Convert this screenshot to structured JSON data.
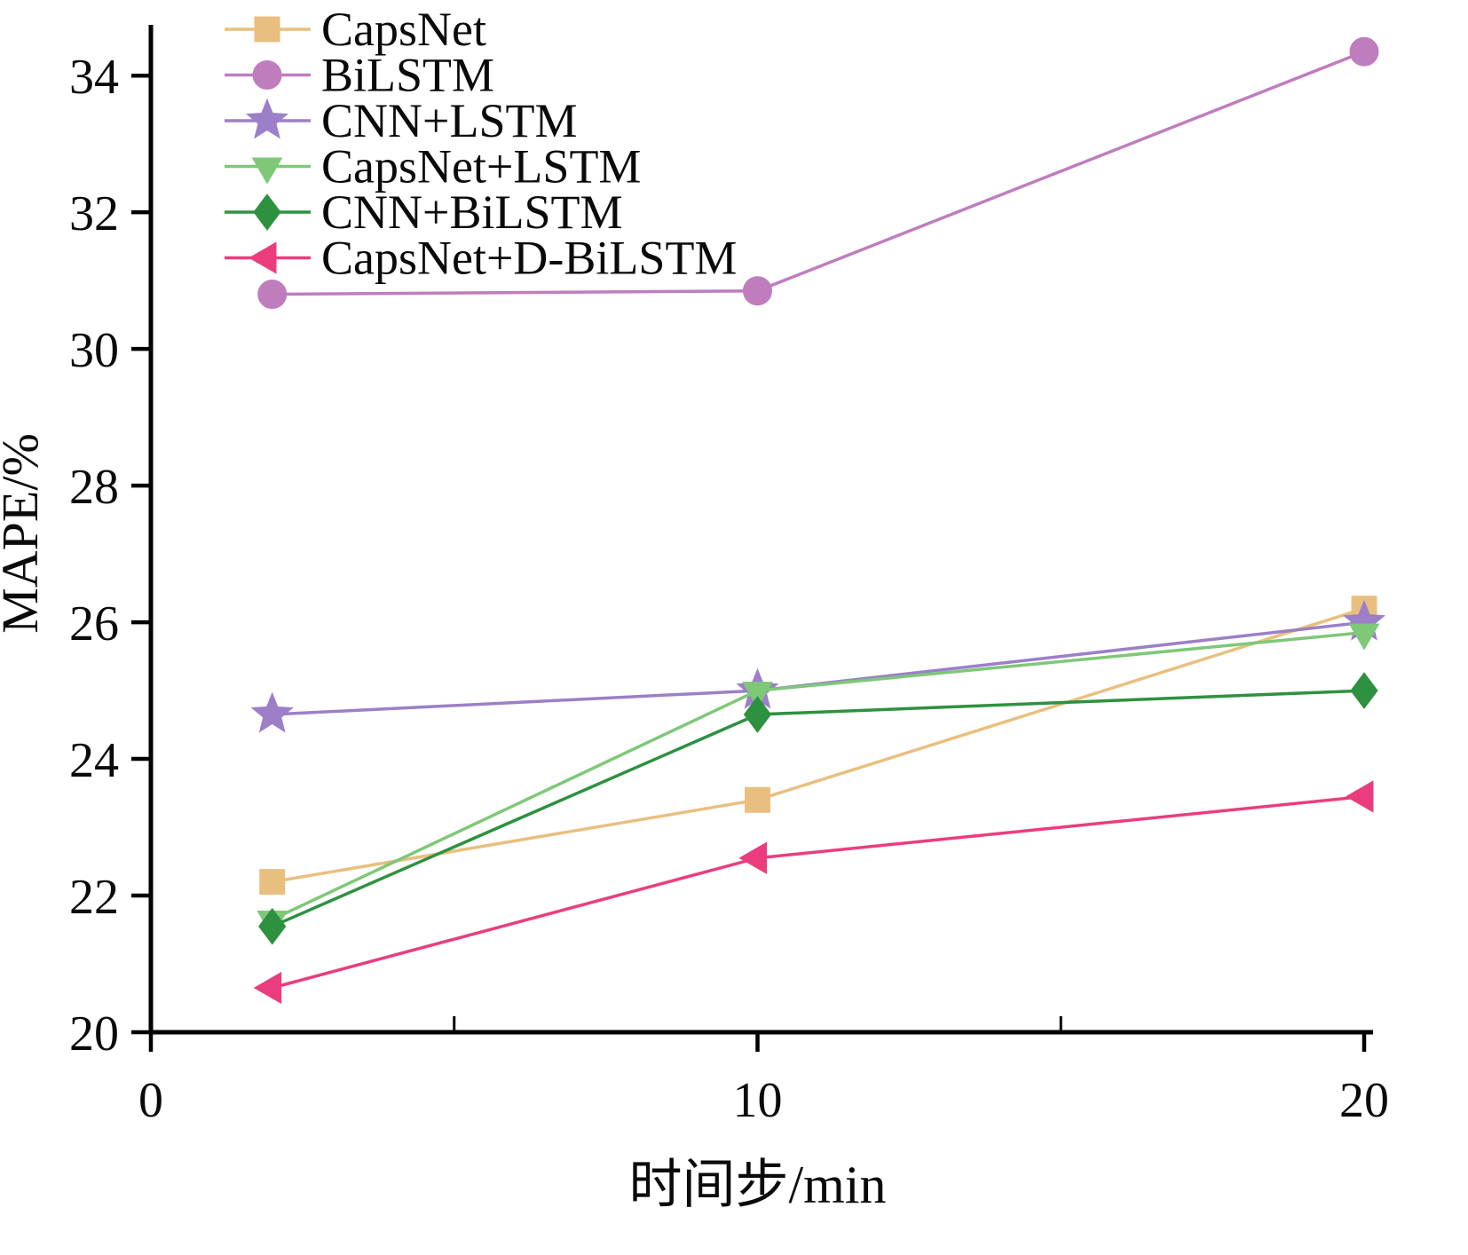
{
  "chart_data": {
    "type": "line",
    "title": "",
    "xlabel": "时间步/min",
    "ylabel": "MAPE/%",
    "x": [
      2,
      10,
      20
    ],
    "x_ticks": [
      0,
      10,
      20
    ],
    "x_minor_ticks": [
      5,
      15
    ],
    "y_ticks": [
      20,
      22,
      24,
      26,
      28,
      30,
      32,
      34
    ],
    "xlim": [
      0,
      20
    ],
    "ylim": [
      20,
      34.6
    ],
    "grid": false,
    "legend_position": "upper-left",
    "axis_color": "#000000",
    "series": [
      {
        "name": "CapsNet",
        "marker": "square",
        "color": "#e9bf7f",
        "values": [
          22.2,
          23.4,
          26.2
        ]
      },
      {
        "name": "BiLSTM",
        "marker": "circle",
        "color": "#bf7dbe",
        "values": [
          30.8,
          30.85,
          34.35
        ]
      },
      {
        "name": "CNN+LSTM",
        "marker": "star",
        "color": "#9c7fc8",
        "values": [
          24.65,
          25.0,
          26.0
        ]
      },
      {
        "name": "CapsNet+LSTM",
        "marker": "triangle-down",
        "color": "#7ec878",
        "values": [
          21.65,
          25.0,
          25.85
        ]
      },
      {
        "name": "CNN+BiLSTM",
        "marker": "diamond",
        "color": "#2e9140",
        "values": [
          21.55,
          24.65,
          25.0
        ]
      },
      {
        "name": "CapsNet+D-BiLSTM",
        "marker": "triangle-left",
        "color": "#eb3d7e",
        "values": [
          20.65,
          22.55,
          23.45
        ]
      }
    ]
  }
}
